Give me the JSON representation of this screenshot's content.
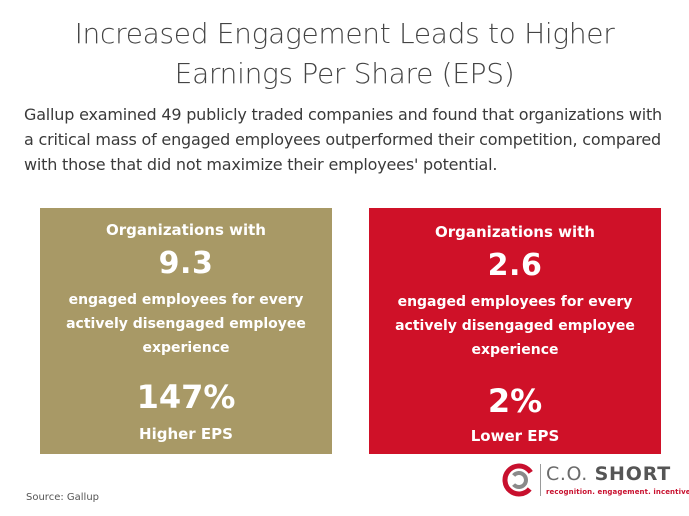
{
  "title_line1": "Increased Engagement Leads to Higher",
  "title_line2": "Earnings Per Share (EPS)",
  "intro": "Gallup examined 49 publicly traded companies and found that organizations with a critical mass of engaged employees outperformed their competition, compared with those that did not maximize their employees' potential.",
  "cards": [
    {
      "lead": "Organizations with",
      "ratio": "9.3",
      "desc": "engaged employees for every actively disengaged employee experience",
      "stat": "147%",
      "stat_label": "Higher EPS",
      "color": "#a89966"
    },
    {
      "lead": "Organizations with",
      "ratio": "2.6",
      "desc": "engaged employees for every actively disengaged employee experience",
      "stat": "2%",
      "stat_label": "Lower EPS",
      "color": "#cf1128"
    }
  ],
  "source": "Source: Gallup",
  "logo": {
    "name_light": "C.O.",
    "name_bold": "SHORT",
    "tagline": "recognition. engagement. incentives.",
    "accent": "#c8102e"
  }
}
